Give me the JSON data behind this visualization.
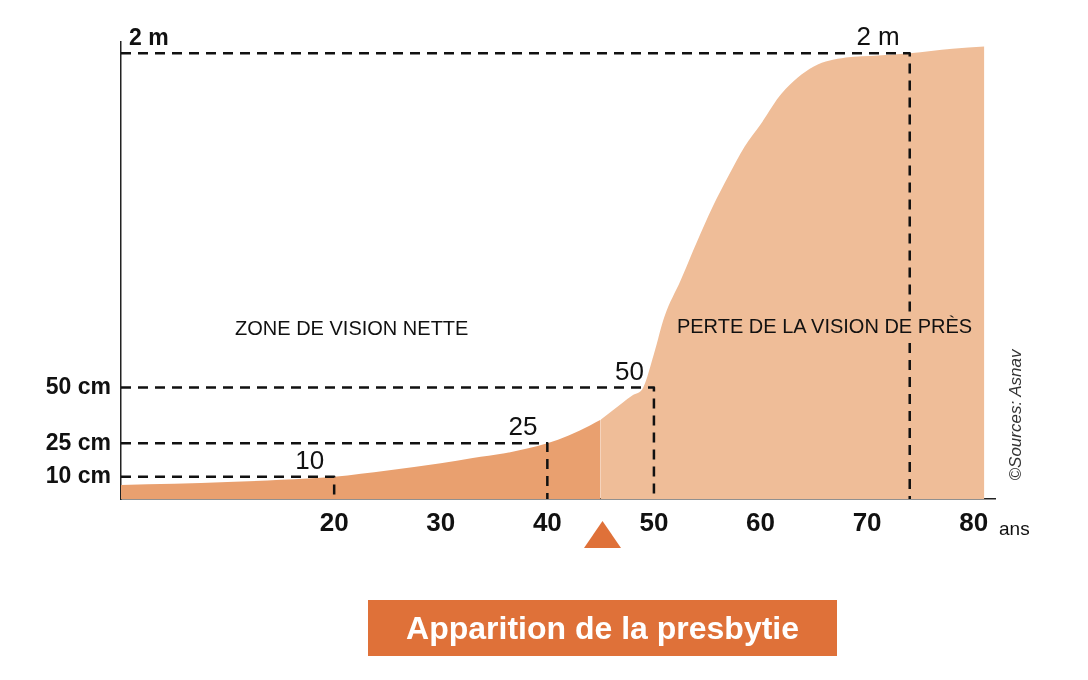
{
  "chart_data": {
    "type": "area",
    "xlabel": "ans",
    "xlim": [
      0,
      82
    ],
    "xticks": [
      20,
      30,
      40,
      50,
      60,
      70,
      80
    ],
    "ylim": [
      0,
      205
    ],
    "yticks": [
      {
        "value": 10,
        "label": "10 cm"
      },
      {
        "value": 25,
        "label": "25 cm"
      },
      {
        "value": 50,
        "label": "50 cm"
      }
    ],
    "series": [
      {
        "color": "#e9a06f",
        "x": [
          0,
          5,
          10,
          15,
          20,
          25,
          30,
          33,
          36,
          38,
          40,
          42,
          44,
          45
        ],
        "values": [
          6.3,
          6.8,
          7.6,
          8.6,
          10,
          12.8,
          16,
          18.4,
          20.5,
          22.5,
          25,
          28.5,
          33,
          35.5
        ]
      },
      {
        "color": "#efbd98",
        "x": [
          45,
          47,
          48,
          49,
          50,
          51,
          52.5,
          54,
          55.5,
          57,
          58.5,
          60,
          62,
          65,
          68,
          71,
          74,
          78,
          81
        ],
        "values": [
          35.5,
          43,
          46.5,
          50,
          65,
          82,
          98,
          115,
          131,
          145,
          158,
          168,
          182,
          194,
          198,
          199,
          200,
          202,
          203
        ]
      },
      {
        "type": "line",
        "color": "#111111",
        "line_style": "dashed",
        "x": [
          0,
          20,
          20
        ],
        "values": [
          10,
          10,
          0
        ]
      },
      {
        "type": "line",
        "color": "#111111",
        "line_style": "dashed",
        "x": [
          0,
          40,
          40
        ],
        "values": [
          25,
          25,
          0
        ]
      },
      {
        "type": "line",
        "color": "#111111",
        "line_style": "dashed",
        "x": [
          0,
          50,
          50
        ],
        "values": [
          50,
          50,
          0
        ]
      },
      {
        "type": "line",
        "color": "#111111",
        "line_style": "dashed",
        "x": [
          0,
          74,
          74
        ],
        "values": [
          200,
          200,
          84
        ]
      },
      {
        "type": "line",
        "color": "#111111",
        "line_style": "dashed",
        "x": [
          74,
          74
        ],
        "values": [
          70,
          0
        ]
      }
    ],
    "annotations": [
      {
        "text": "2 m",
        "x": 0,
        "y": 200
      },
      {
        "text": "10",
        "x": 20,
        "y": 10
      },
      {
        "text": "25",
        "x": 40,
        "y": 25
      },
      {
        "text": "50",
        "x": 50,
        "y": 50
      },
      {
        "text": "2 m",
        "x": 74,
        "y": 200
      },
      "ZONE DE VISION NETTE",
      "PERTE DE LA VISION DE PRÈS",
      "Apparition de la presbytie",
      "©Sources: Asnav"
    ]
  }
}
